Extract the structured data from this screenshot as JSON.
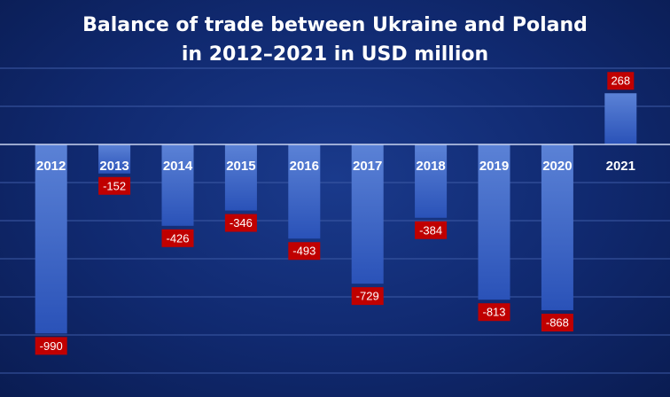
{
  "chart_data": {
    "type": "bar",
    "title_lines": [
      "Balance of trade between Ukraine and Poland",
      "in 2012–2021 in USD million"
    ],
    "categories": [
      "2012",
      "2013",
      "2014",
      "2015",
      "2016",
      "2017",
      "2018",
      "2019",
      "2020",
      "2021"
    ],
    "values": [
      -990,
      -152,
      -426,
      -346,
      -493,
      -729,
      -384,
      -813,
      -868,
      268
    ],
    "data_labels": [
      "-990",
      "-152",
      "-426",
      "-346",
      "-493",
      "-729",
      "-384",
      "-813",
      "-868",
      "268"
    ],
    "ylim": [
      -1250,
      470
    ],
    "grid": true,
    "legend": "none",
    "colors": {
      "bar_top": "#5b82d6",
      "bar_bottom": "#2a52b8",
      "label_box": "#c00000",
      "background": "#10296f"
    }
  }
}
